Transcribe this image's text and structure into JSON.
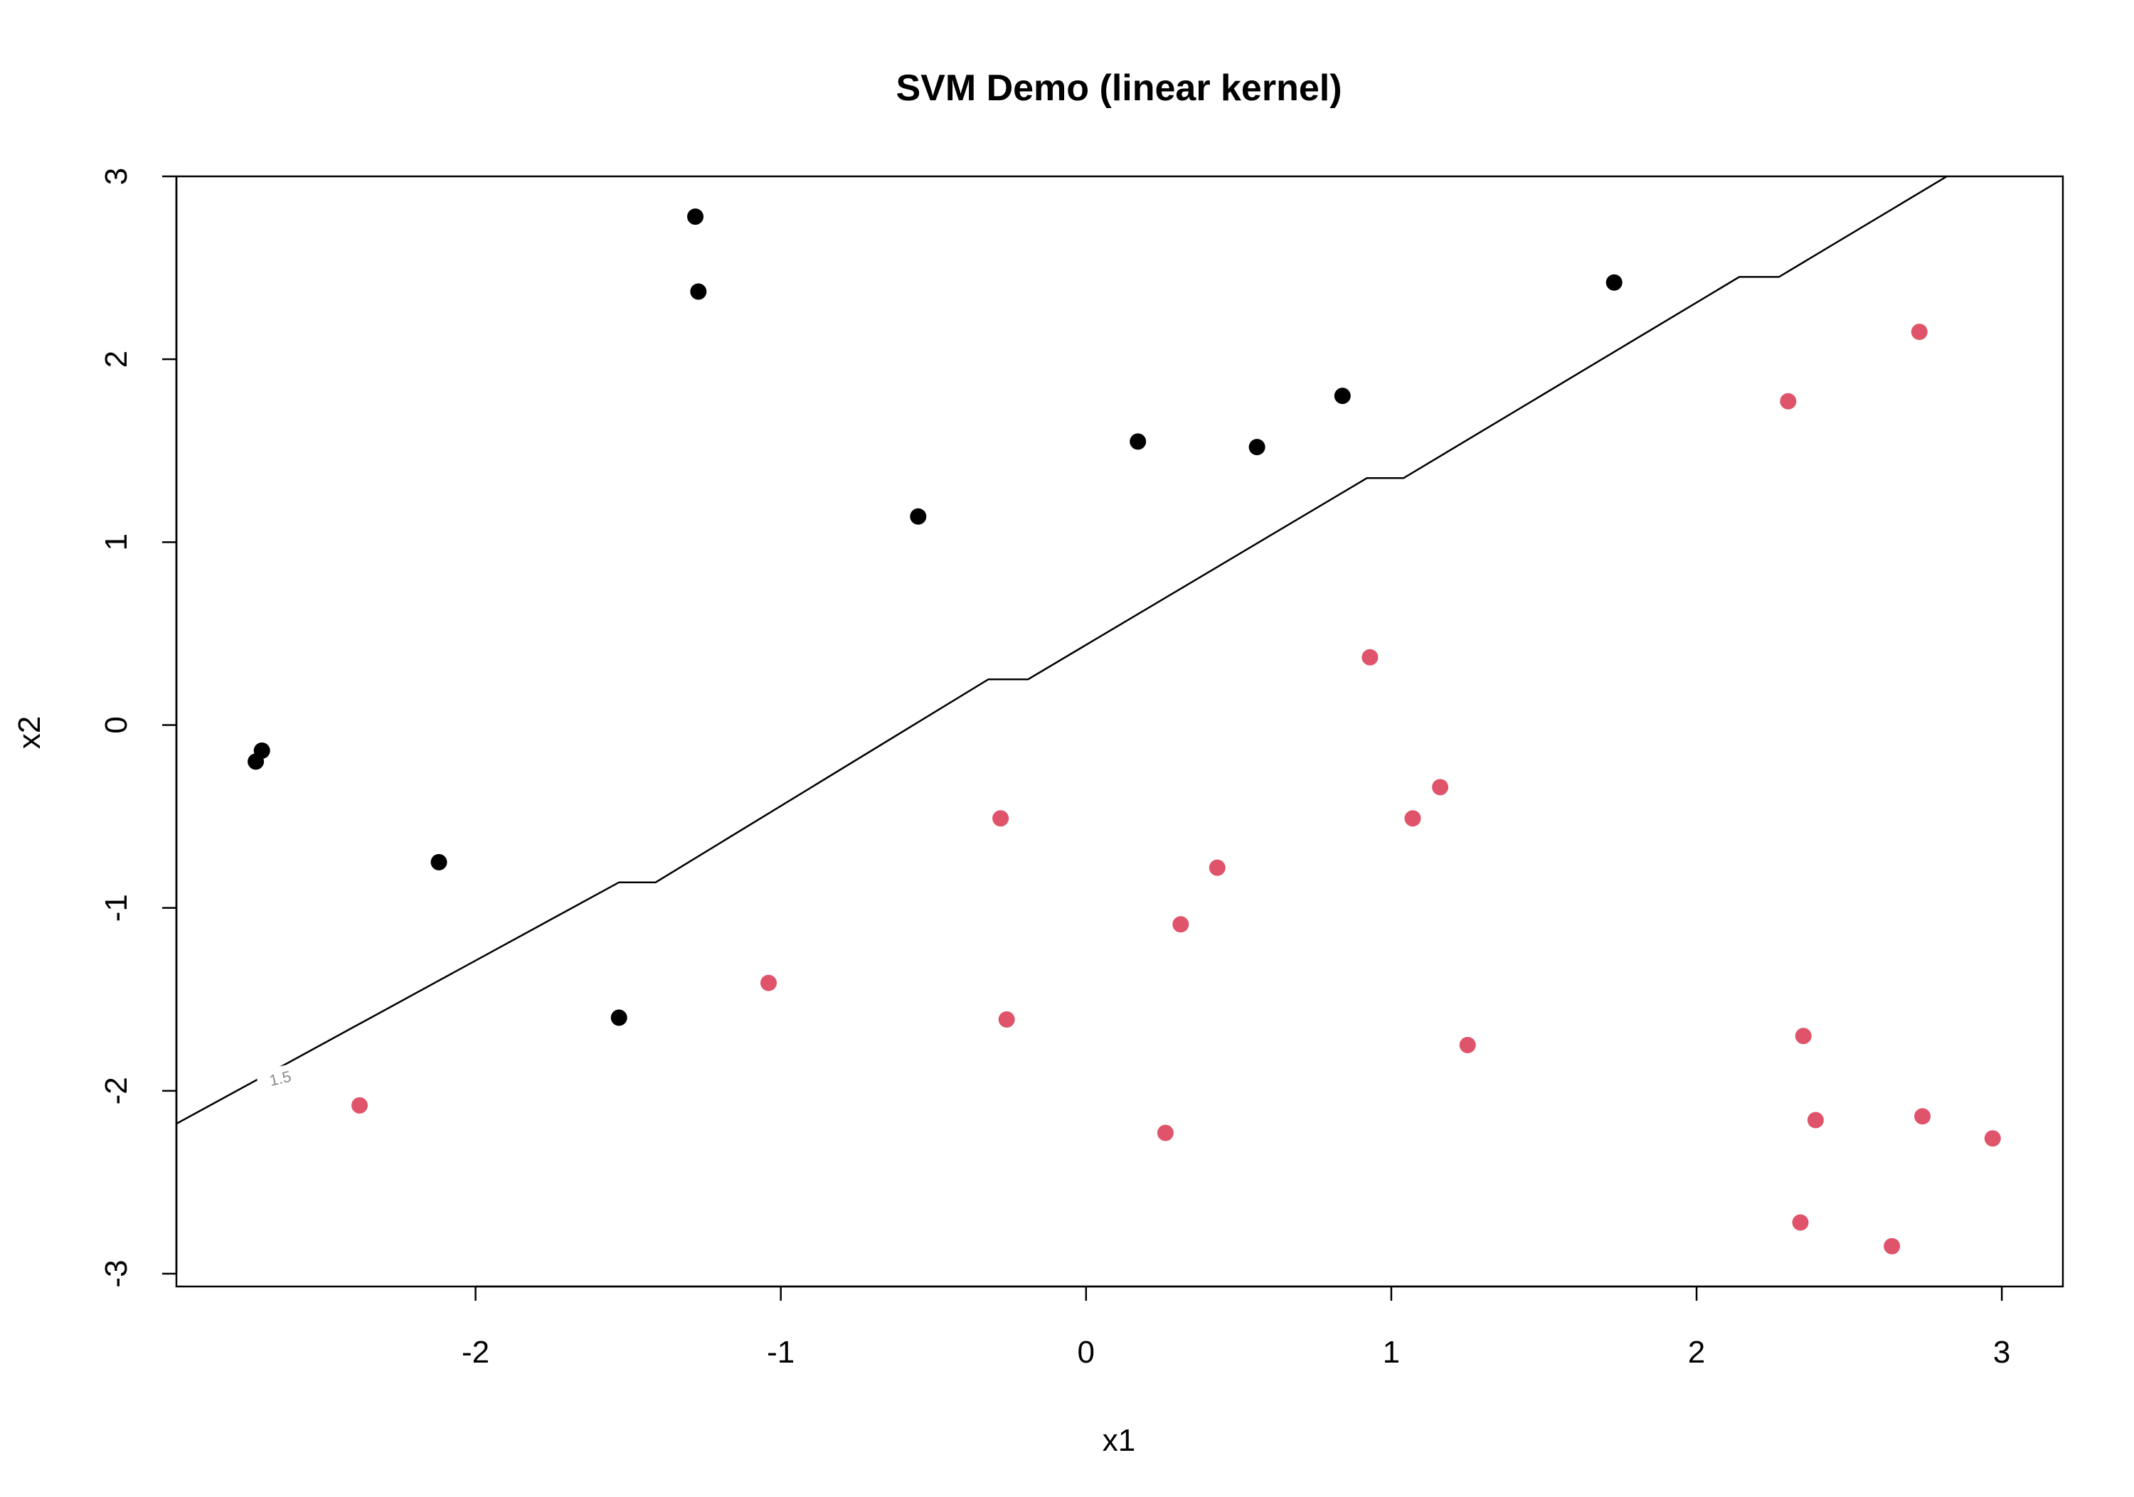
{
  "chart_data": {
    "type": "scatter",
    "title": "SVM Demo (linear kernel)",
    "xlabel": "x1",
    "ylabel": "x2",
    "xlim": [
      -2.98,
      3.2
    ],
    "ylim": [
      -3.07,
      3.0
    ],
    "xticks": [
      -2,
      -1,
      0,
      1,
      2,
      3
    ],
    "xtick_labels": [
      "-2",
      "-1",
      "0",
      "1",
      "2",
      "3"
    ],
    "yticks": [
      -3,
      -2,
      -1,
      0,
      1,
      2,
      3
    ],
    "ytick_labels": [
      "-3",
      "-2",
      "-1",
      "0",
      "1",
      "2",
      "3"
    ],
    "grid": false,
    "colors": {
      "class_a": "#000000",
      "class_b": "#df536b",
      "boundary": "#000000",
      "contour_label": "#8a8a8a"
    },
    "series": [
      {
        "color": "#000000",
        "points": [
          [
            -1.28,
            2.78
          ],
          [
            -1.27,
            2.37
          ],
          [
            1.73,
            2.42
          ],
          [
            -0.55,
            1.14
          ],
          [
            0.17,
            1.55
          ],
          [
            0.56,
            1.52
          ],
          [
            0.84,
            1.8
          ],
          [
            -2.7,
            -0.14
          ],
          [
            -2.72,
            -0.2
          ],
          [
            -2.12,
            -0.75
          ],
          [
            -1.53,
            -1.6
          ]
        ]
      },
      {
        "color": "#df536b",
        "points": [
          [
            2.73,
            2.15
          ],
          [
            2.3,
            1.77
          ],
          [
            0.93,
            0.37
          ],
          [
            1.16,
            -0.34
          ],
          [
            1.07,
            -0.51
          ],
          [
            -0.28,
            -0.51
          ],
          [
            0.43,
            -0.78
          ],
          [
            0.31,
            -1.09
          ],
          [
            -1.04,
            -1.41
          ],
          [
            -0.26,
            -1.61
          ],
          [
            1.25,
            -1.75
          ],
          [
            2.35,
            -1.7
          ],
          [
            -2.38,
            -2.08
          ],
          [
            0.26,
            -2.23
          ],
          [
            2.39,
            -2.16
          ],
          [
            2.74,
            -2.14
          ],
          [
            2.97,
            -2.26
          ],
          [
            2.34,
            -2.72
          ],
          [
            2.64,
            -2.85
          ]
        ]
      }
    ],
    "decision_boundary": {
      "level_label": "1.5",
      "points": [
        [
          -2.98,
          -2.18
        ],
        [
          -1.53,
          -0.86
        ],
        [
          -1.41,
          -0.86
        ],
        [
          -0.32,
          0.25
        ],
        [
          -0.19,
          0.25
        ],
        [
          0.92,
          1.35
        ],
        [
          1.04,
          1.35
        ],
        [
          2.14,
          2.45
        ],
        [
          2.27,
          2.45
        ],
        [
          2.82,
          3.0
        ]
      ],
      "label_at": [
        -2.64,
        -1.93
      ]
    }
  }
}
